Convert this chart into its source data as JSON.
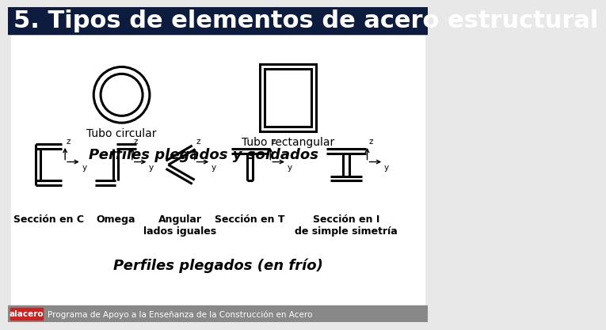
{
  "title": "5. Tipos de elementos de acero estructural",
  "title_bg": "#0d1b3e",
  "title_color": "#ffffff",
  "title_fontsize": 22,
  "bg_color": "#e8e8e8",
  "content_bg": "#ffffff",
  "footer_bg": "#888888",
  "footer_text": "Programa de Apoyo a la Enseñanza de la Construcción en Acero",
  "label_circular": "Tubo circular",
  "label_rectangular": "Tubo rectangular",
  "label_perfiles_soldados": "Perfiles plegados y soldados",
  "label_perfiles_frio": "Perfiles plegados (en frío)",
  "section_labels": [
    "Sección en C",
    "Omega",
    "Angular\nlados iguales",
    "Sección en T",
    "Sección en I\nde simple simetría"
  ]
}
